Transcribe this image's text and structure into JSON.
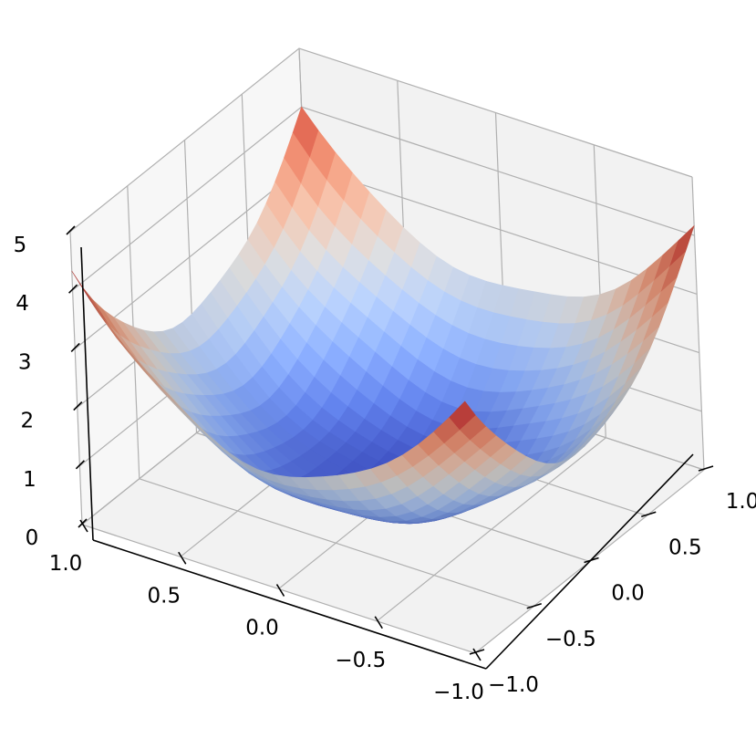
{
  "chart_data": {
    "type": "surface",
    "title": "",
    "xlabel": "",
    "ylabel": "",
    "zlabel": "",
    "function": "z = 2*(x^2 + y^2) + noise",
    "colormap": "coolwarm",
    "colors": {
      "low": "#3b4cc0",
      "mid": "#dddddd",
      "high": "#b40426",
      "pane": "#f2f2f2",
      "grid": "#b0b0b0"
    },
    "x_range": [
      -1,
      1
    ],
    "y_range": [
      -1,
      1
    ],
    "zlim": [
      0,
      5
    ],
    "grid_resolution": 25,
    "x_ticks": [
      "1.0",
      "0.5",
      "0.0",
      "−0.5",
      "−1.0"
    ],
    "y_ticks": [
      "1.0",
      "0.5",
      "0.0",
      "−0.5",
      "−1.0"
    ],
    "z_ticks": [
      "0",
      "1",
      "2",
      "3",
      "4",
      "5"
    ],
    "x_tick_values": [
      1.0,
      0.5,
      0.0,
      -0.5,
      -1.0
    ],
    "y_tick_values": [
      1.0,
      0.5,
      0.0,
      -0.5,
      -1.0
    ],
    "z_tick_values": [
      0,
      1,
      2,
      3,
      4,
      5
    ],
    "corner_values": {
      "x=1,y=1": 4.0,
      "x=-1,y=1": 4.1,
      "x=1,y=-1": 4.4,
      "x=-1,y=-1": 4.3
    },
    "minimum_value": 0.05,
    "grid": true,
    "legend": "none",
    "elevation_deg": 30,
    "azimuth_deg": -60
  }
}
